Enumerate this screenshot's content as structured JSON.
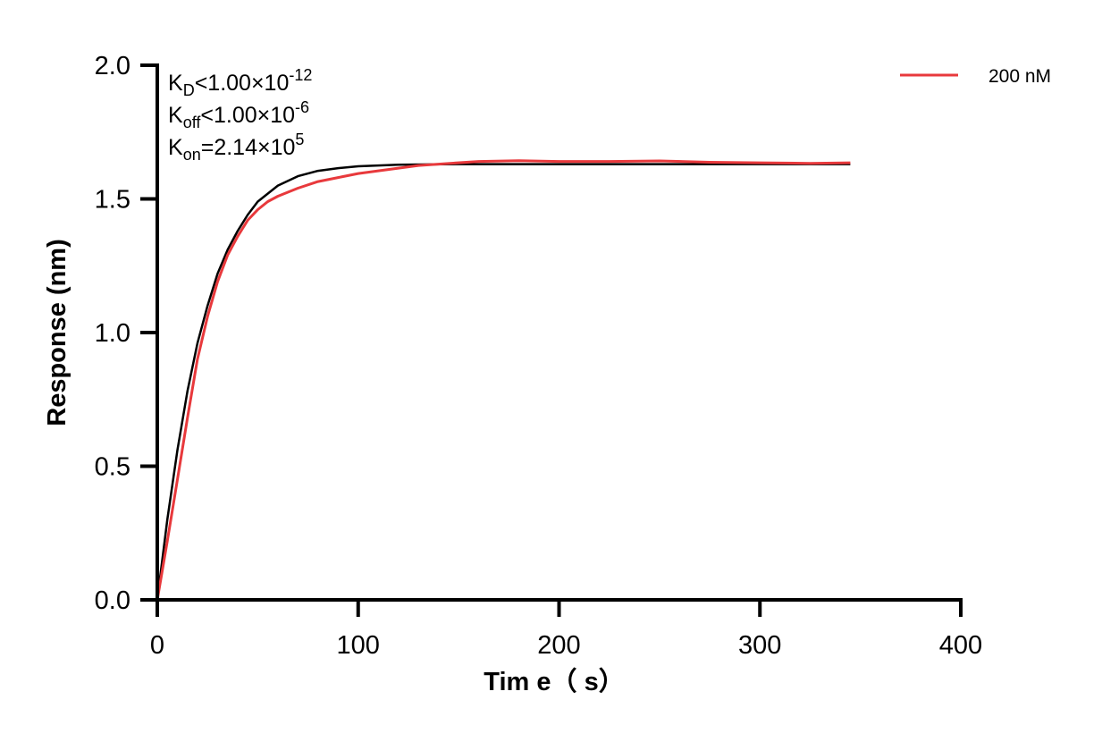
{
  "chart_data": {
    "type": "line",
    "xlabel": "Tim e（ s）",
    "ylabel": "Response (nm)",
    "xlim": [
      0,
      400
    ],
    "ylim": [
      0,
      2.0
    ],
    "xticks": [
      "0",
      "100",
      "200",
      "300",
      "400"
    ],
    "yticks": [
      "0.0",
      "0.5",
      "1.0",
      "1.5",
      "2.0"
    ],
    "grid": false,
    "legend_position": "top-right",
    "annotations": [
      {
        "main": "K",
        "sub": "D",
        "rest": "<1.00×10",
        "sup": "-12"
      },
      {
        "main": "K",
        "sub": "off",
        "rest": "<1.00×10",
        "sup": "-6"
      },
      {
        "main": "K",
        "sub": "on",
        "rest": "=2.14×10",
        "sup": "5"
      }
    ],
    "series": [
      {
        "name": "200 nM",
        "color": "#e8393c",
        "x": [
          0,
          5,
          10,
          15,
          20,
          25,
          30,
          35,
          40,
          45,
          50,
          55,
          60,
          70,
          80,
          90,
          100,
          110,
          120,
          130,
          140,
          160,
          180,
          200,
          225,
          250,
          275,
          300,
          325,
          345
        ],
        "y": [
          0,
          0.22,
          0.45,
          0.68,
          0.9,
          1.06,
          1.19,
          1.29,
          1.36,
          1.42,
          1.46,
          1.49,
          1.51,
          1.54,
          1.565,
          1.58,
          1.595,
          1.605,
          1.615,
          1.625,
          1.63,
          1.64,
          1.643,
          1.64,
          1.64,
          1.642,
          1.637,
          1.635,
          1.633,
          1.635
        ]
      },
      {
        "color": "#000000",
        "x": [
          0,
          5,
          10,
          15,
          20,
          25,
          30,
          35,
          40,
          45,
          50,
          60,
          70,
          80,
          90,
          100,
          120,
          150,
          200,
          250,
          300,
          345
        ],
        "y": [
          0,
          0.3,
          0.56,
          0.78,
          0.96,
          1.1,
          1.22,
          1.31,
          1.38,
          1.44,
          1.49,
          1.55,
          1.585,
          1.605,
          1.615,
          1.622,
          1.628,
          1.63,
          1.63,
          1.63,
          1.63,
          1.63
        ]
      }
    ]
  }
}
